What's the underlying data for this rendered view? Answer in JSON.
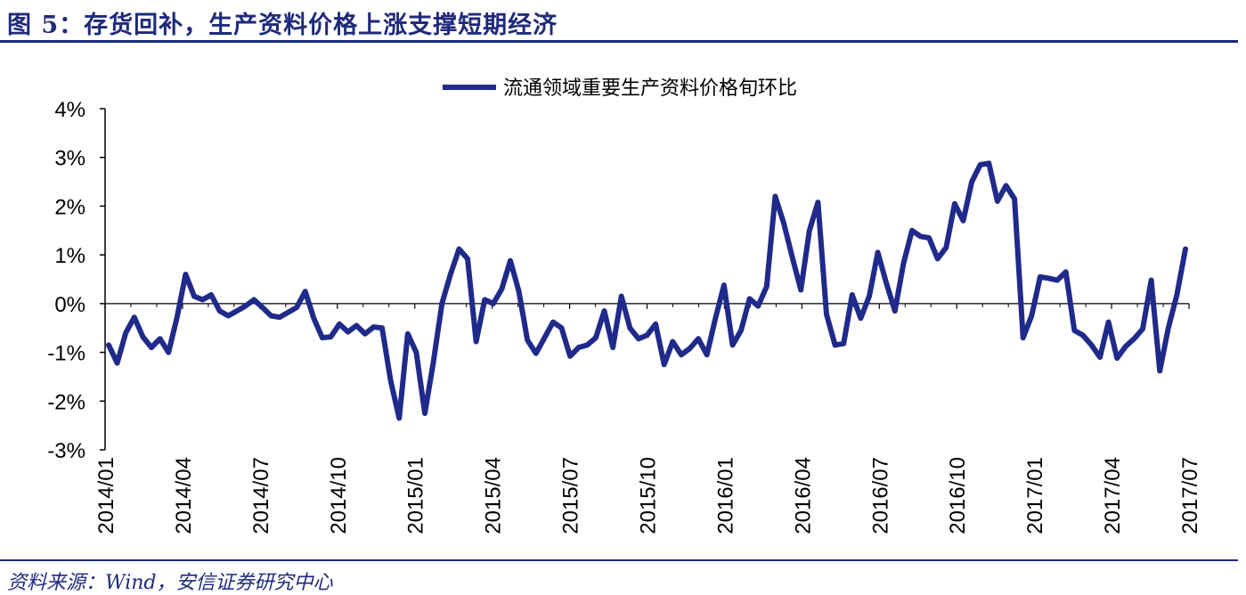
{
  "figure_title": "图 5：存货回补，生产资料价格上涨支撑短期经济",
  "source_note": "资料来源：Wind，安信证券研究中心",
  "colors": {
    "series": "#1f2a8a",
    "accent": "#1f2a7a",
    "axis": "#000000"
  },
  "chart_data": {
    "type": "line",
    "title": "",
    "xlabel": "",
    "ylabel": "",
    "ylim": [
      -3,
      4
    ],
    "yticks": [
      "4%",
      "3%",
      "2%",
      "1%",
      "0%",
      "-1%",
      "-2%",
      "-3%"
    ],
    "ytick_values": [
      4,
      3,
      2,
      1,
      0,
      -1,
      -2,
      -3
    ],
    "xtick_labels": [
      "2014/01",
      "2014/04",
      "2014/07",
      "2014/10",
      "2015/01",
      "2015/04",
      "2015/07",
      "2015/10",
      "2016/01",
      "2016/04",
      "2016/07",
      "2016/10",
      "2017/01",
      "2017/04",
      "2017/07"
    ],
    "grid": false,
    "legend": "top-center",
    "series": [
      {
        "name": "流通领域重要生产资料价格旬环比",
        "values": [
          -0.85,
          -1.22,
          -0.6,
          -0.28,
          -0.68,
          -0.9,
          -0.72,
          -1.0,
          -0.28,
          0.6,
          0.15,
          0.08,
          0.18,
          -0.15,
          -0.25,
          -0.15,
          -0.05,
          0.08,
          -0.08,
          -0.25,
          -0.28,
          -0.18,
          -0.08,
          0.25,
          -0.3,
          -0.7,
          -0.68,
          -0.42,
          -0.58,
          -0.45,
          -0.62,
          -0.48,
          -0.5,
          -1.58,
          -2.35,
          -0.62,
          -1.0,
          -2.25,
          -1.2,
          0.0,
          0.6,
          1.12,
          0.92,
          -0.78,
          0.08,
          0.0,
          0.3,
          0.88,
          0.25,
          -0.75,
          -1.02,
          -0.7,
          -0.38,
          -0.5,
          -1.08,
          -0.9,
          -0.85,
          -0.7,
          -0.15,
          -0.9,
          0.15,
          -0.5,
          -0.72,
          -0.65,
          -0.42,
          -1.25,
          -0.78,
          -1.05,
          -0.92,
          -0.72,
          -1.05,
          -0.3,
          0.38,
          -0.85,
          -0.55,
          0.1,
          -0.05,
          0.35,
          2.2,
          1.65,
          0.95,
          0.28,
          1.5,
          2.08,
          -0.22,
          -0.85,
          -0.82,
          0.18,
          -0.3,
          0.15,
          1.05,
          0.42,
          -0.15,
          0.82,
          1.5,
          1.38,
          1.35,
          0.92,
          1.15,
          2.05,
          1.7,
          2.5,
          2.85,
          2.88,
          2.1,
          2.42,
          2.15,
          -0.7,
          -0.25,
          0.55,
          0.52,
          0.48,
          0.65,
          -0.55,
          -0.65,
          -0.85,
          -1.1,
          -0.38,
          -1.12,
          -0.88,
          -0.72,
          -0.52,
          0.48,
          -1.38,
          -0.5,
          0.18,
          1.12
        ]
      }
    ]
  }
}
